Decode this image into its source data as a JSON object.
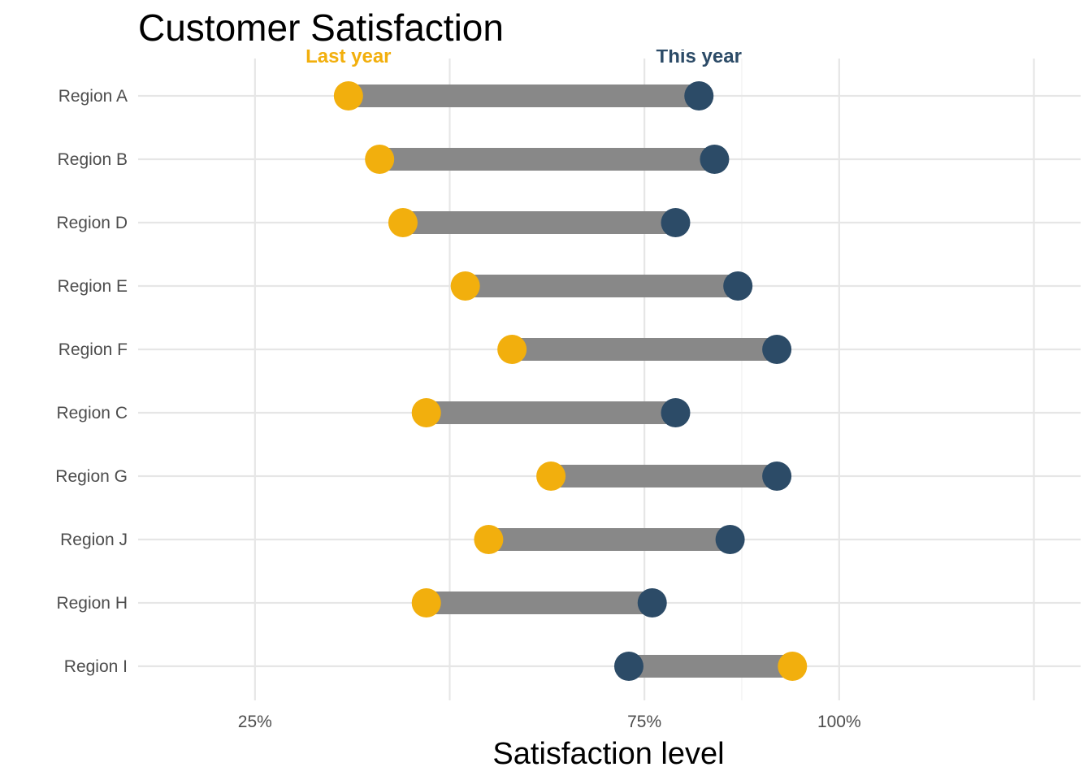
{
  "chart_data": {
    "type": "dumbbell",
    "title": "Customer Satisfaction",
    "xlabel": "Satisfaction level",
    "ylabel": "",
    "xlim": [
      0.1,
      1.31
    ],
    "x_ticks": [
      {
        "value": 0.25,
        "label": "25%"
      },
      {
        "value": 0.75,
        "label": "75%"
      },
      {
        "value": 1.0,
        "label": "100%"
      }
    ],
    "x_grid_major": [
      0.25,
      0.5,
      0.75,
      1.0,
      1.25
    ],
    "x_grid_minor": [
      0.875
    ],
    "grid": true,
    "connector_color": "#888888",
    "series": [
      {
        "name": "Last year",
        "color": "#F2AF0D",
        "label_x": 0.37
      },
      {
        "name": "This year",
        "color": "#2C4B67",
        "label_x": 0.82
      }
    ],
    "categories": [
      "Region A",
      "Region B",
      "Region D",
      "Region E",
      "Region F",
      "Region C",
      "Region G",
      "Region J",
      "Region H",
      "Region I"
    ],
    "rows": [
      {
        "region": "Region A",
        "last_year": 0.37,
        "this_year": 0.82
      },
      {
        "region": "Region B",
        "last_year": 0.41,
        "this_year": 0.84
      },
      {
        "region": "Region D",
        "last_year": 0.44,
        "this_year": 0.79
      },
      {
        "region": "Region E",
        "last_year": 0.52,
        "this_year": 0.87
      },
      {
        "region": "Region F",
        "last_year": 0.58,
        "this_year": 0.92
      },
      {
        "region": "Region C",
        "last_year": 0.47,
        "this_year": 0.79
      },
      {
        "region": "Region G",
        "last_year": 0.63,
        "this_year": 0.92
      },
      {
        "region": "Region J",
        "last_year": 0.55,
        "this_year": 0.86
      },
      {
        "region": "Region H",
        "last_year": 0.47,
        "this_year": 0.76
      },
      {
        "region": "Region I",
        "last_year": 0.94,
        "this_year": 0.73
      }
    ]
  }
}
